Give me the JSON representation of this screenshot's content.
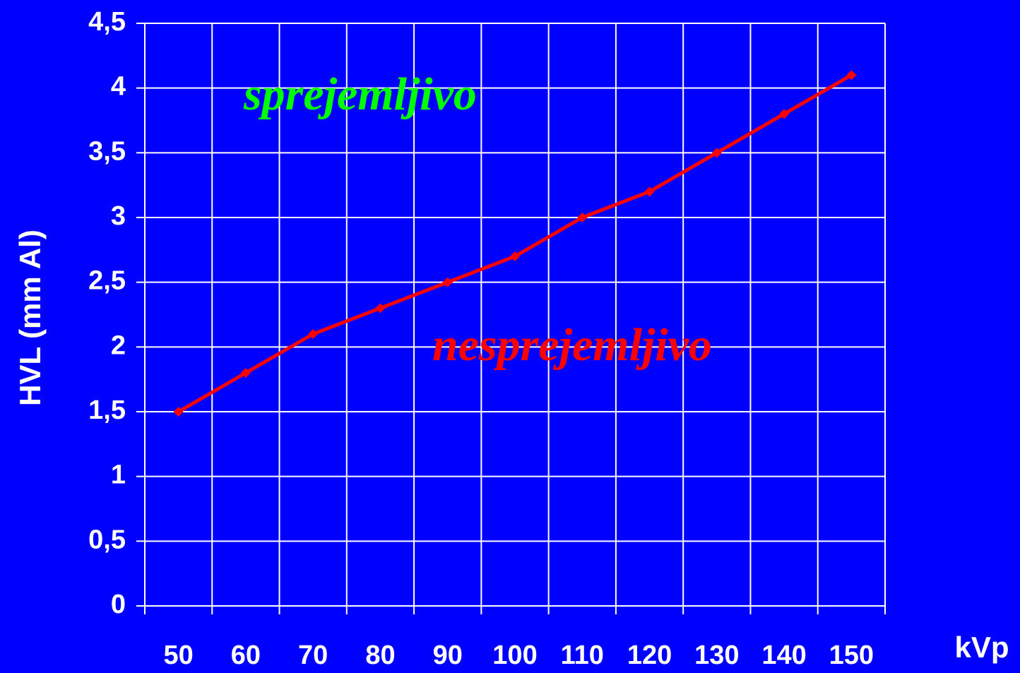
{
  "chart_data": {
    "type": "line",
    "x_label": "kVp",
    "y_label": "HVL (mm Al)",
    "categories": [
      "50",
      "60",
      "70",
      "80",
      "90",
      "100",
      "110",
      "120",
      "130",
      "140",
      "150"
    ],
    "values": [
      1.5,
      1.8,
      2.1,
      2.3,
      2.5,
      2.7,
      3.0,
      3.2,
      3.5,
      3.8,
      4.1
    ],
    "color": "#ff0000",
    "ylim": [
      0,
      4.5
    ],
    "yticks": [
      0,
      {
        "value": 0.5,
        "label": "0,5"
      },
      1,
      {
        "value": 1.5,
        "label": "1,5"
      },
      2,
      {
        "value": 2.5,
        "label": "2,5"
      },
      3,
      {
        "value": 3.5,
        "label": "3,5"
      },
      4,
      {
        "value": 4.5,
        "label": "4,5"
      }
    ],
    "grid": true,
    "annotations": [
      {
        "text": "sprejemljivo",
        "color": "#00ff00"
      },
      {
        "text": "nesprejemljivo",
        "color": "#ff0000"
      }
    ]
  }
}
